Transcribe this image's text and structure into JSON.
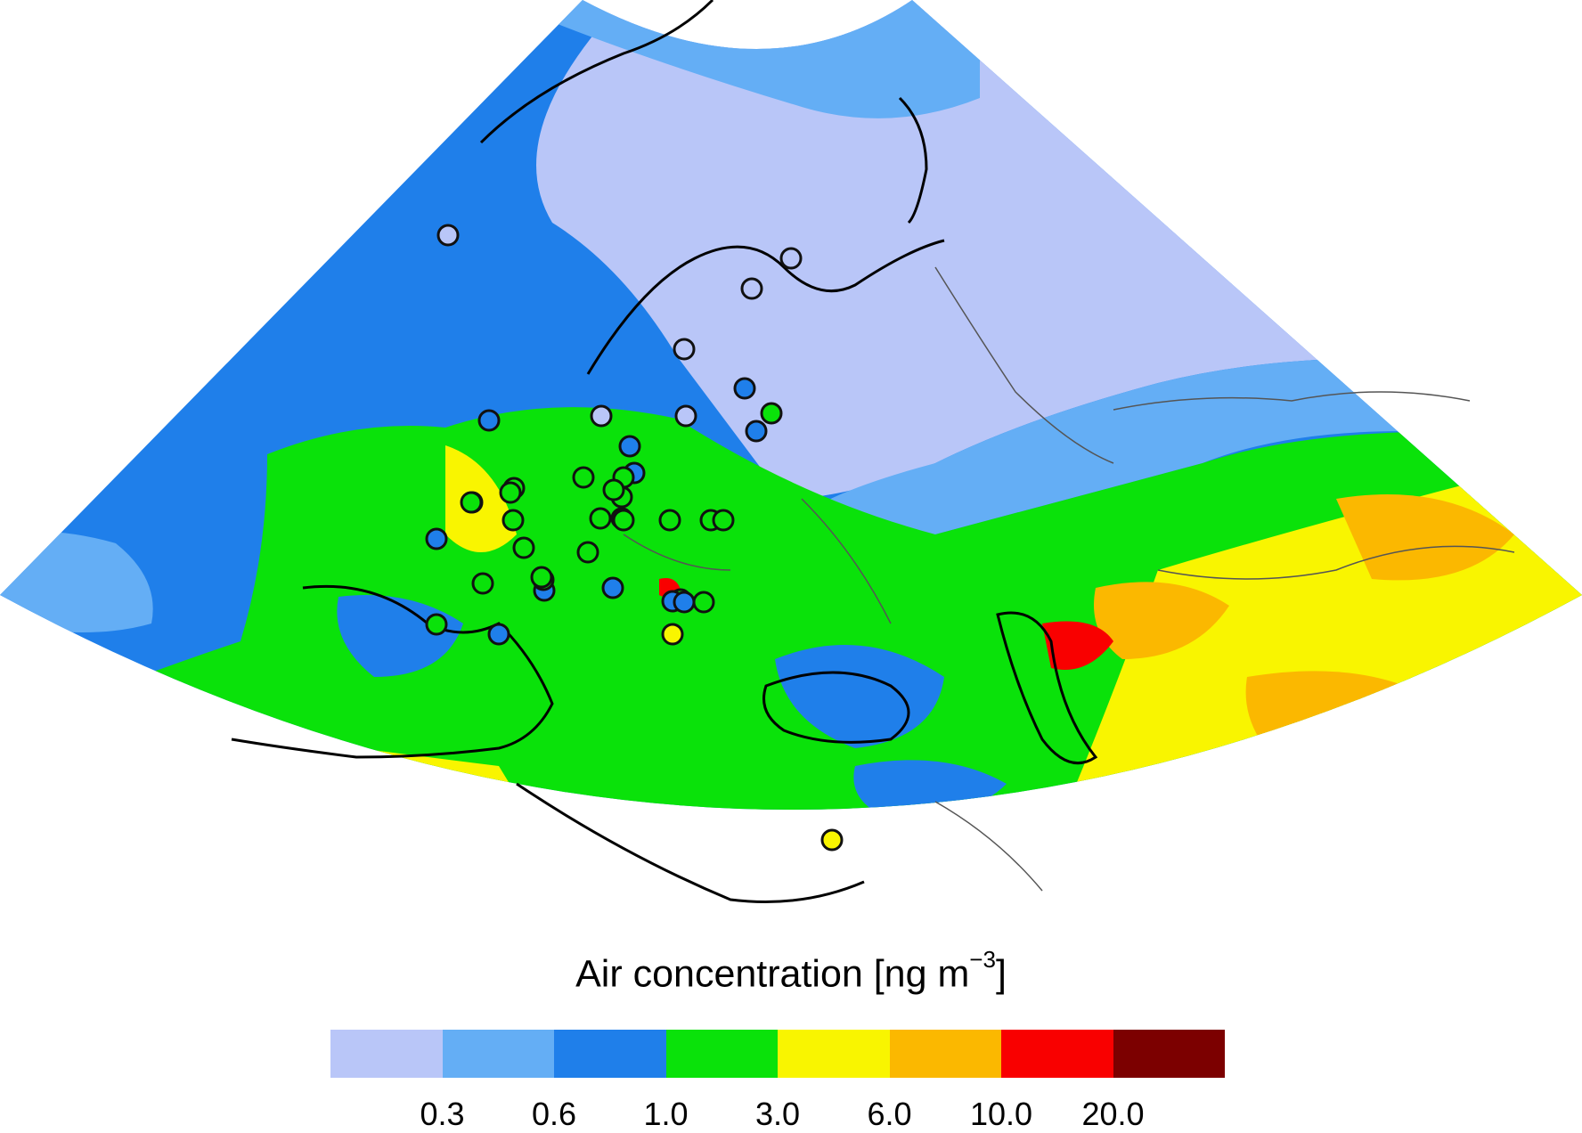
{
  "legend": {
    "title_prefix": "Air concentration [ng m",
    "title_exponent": "−3",
    "title_suffix": "]",
    "tick_labels": [
      "0.3",
      "0.6",
      "1.0",
      "3.0",
      "6.0",
      "10.0",
      "20.0"
    ],
    "class_colors": [
      "#b9c6f8",
      "#64aef5",
      "#1f7fea",
      "#0ae20a",
      "#f9f500",
      "#fbb800",
      "#f90000",
      "#7c0000"
    ]
  },
  "colors": {
    "coastline": "#000000",
    "borders": "#555555",
    "station_outline": "#111111"
  },
  "map": {
    "projection": "polar stereographic sector",
    "stations": [
      {
        "cls": 0
      },
      {
        "cls": 0
      },
      {
        "cls": 0
      },
      {
        "cls": 0
      },
      {
        "cls": 0
      },
      {
        "cls": 0
      },
      {
        "cls": 2
      },
      {
        "cls": 2
      },
      {
        "cls": 2
      },
      {
        "cls": 2
      },
      {
        "cls": 2
      },
      {
        "cls": 3
      },
      {
        "cls": 3
      },
      {
        "cls": 3
      },
      {
        "cls": 3
      },
      {
        "cls": 3
      },
      {
        "cls": 3
      },
      {
        "cls": 3
      },
      {
        "cls": 3
      },
      {
        "cls": 3
      },
      {
        "cls": 3
      },
      {
        "cls": 3
      },
      {
        "cls": 3
      },
      {
        "cls": 3
      },
      {
        "cls": 3
      },
      {
        "cls": 2
      },
      {
        "cls": 3
      },
      {
        "cls": 3
      },
      {
        "cls": 2
      },
      {
        "cls": 3
      },
      {
        "cls": 3
      },
      {
        "cls": 3
      },
      {
        "cls": 2
      },
      {
        "cls": 3
      },
      {
        "cls": 2
      },
      {
        "cls": 3
      },
      {
        "cls": 2
      },
      {
        "cls": 3
      },
      {
        "cls": 3
      },
      {
        "cls": 3
      },
      {
        "cls": 2
      },
      {
        "cls": 4
      },
      {
        "cls": 4
      }
    ]
  }
}
